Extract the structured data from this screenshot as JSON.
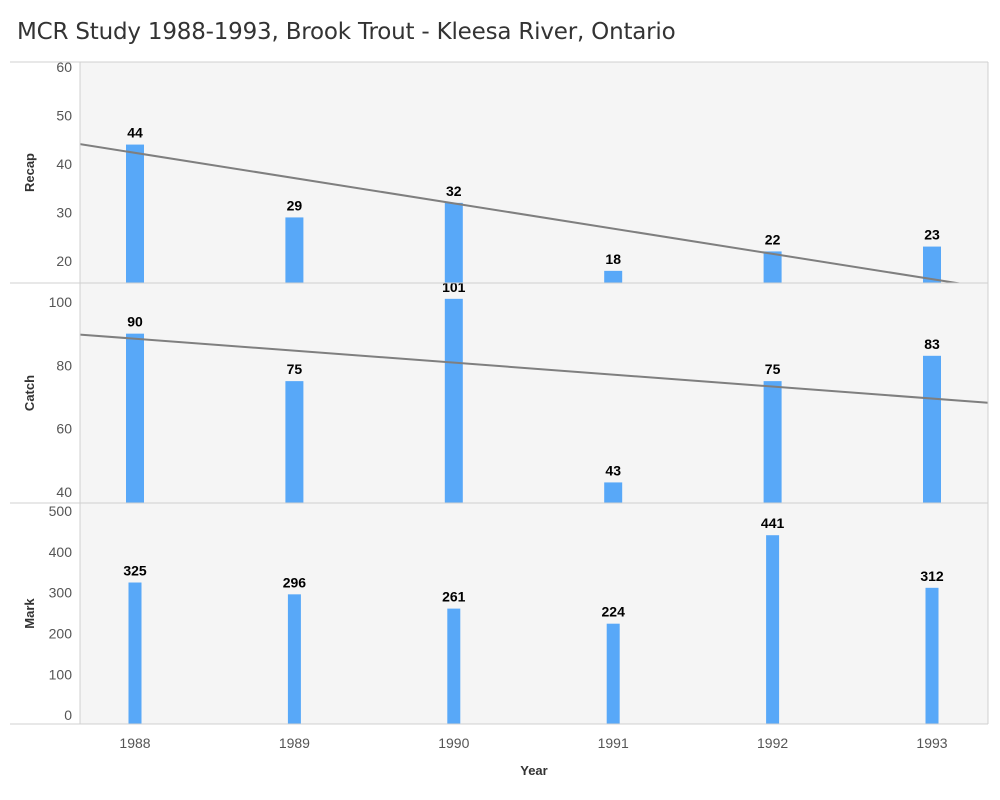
{
  "title": "MCR Study 1988-1993, Brook Trout - Kleesa River, Ontario",
  "colors": {
    "bar": "#58a8f8",
    "trend": "#7f7f7f",
    "panel_bg": "#f5f5f5",
    "border": "#d0d0d0"
  },
  "chart_data": {
    "type": "bar",
    "title": "MCR Study 1988-1993, Brook Trout - Kleesa River, Ontario",
    "xlabel": "Year",
    "categories": [
      "1988",
      "1989",
      "1990",
      "1991",
      "1992",
      "1993"
    ],
    "grid": false,
    "panels": [
      {
        "id": "recap",
        "ylabel": "Recap",
        "ylim": [
          15.5,
          61
        ],
        "yticks": [
          20,
          30,
          40,
          50,
          60
        ],
        "values": [
          44,
          29,
          32,
          18,
          22,
          23
        ],
        "data_labels": [
          "44",
          "29",
          "32",
          "18",
          "22",
          "23"
        ],
        "trend_line": {
          "at_1988": 42.3,
          "at_1993": 16.3
        }
      },
      {
        "id": "catch",
        "ylabel": "Catch",
        "ylim": [
          36.5,
          106
        ],
        "yticks": [
          40,
          60,
          80,
          100
        ],
        "values": [
          90,
          75,
          101,
          43,
          75,
          83
        ],
        "data_labels": [
          "90",
          "75",
          "101",
          "43",
          "75",
          "83"
        ],
        "trend_line": {
          "at_1988": 88.4,
          "at_1993": 69.5
        }
      },
      {
        "id": "mark",
        "ylabel": "Mark",
        "ylim": [
          -22,
          520
        ],
        "yticks": [
          0,
          100,
          200,
          300,
          400,
          500
        ],
        "values": [
          325,
          296,
          261,
          224,
          441,
          312
        ],
        "data_labels": [
          "325",
          "296",
          "261",
          "224",
          "441",
          "312"
        ],
        "trend_line": null
      }
    ]
  }
}
